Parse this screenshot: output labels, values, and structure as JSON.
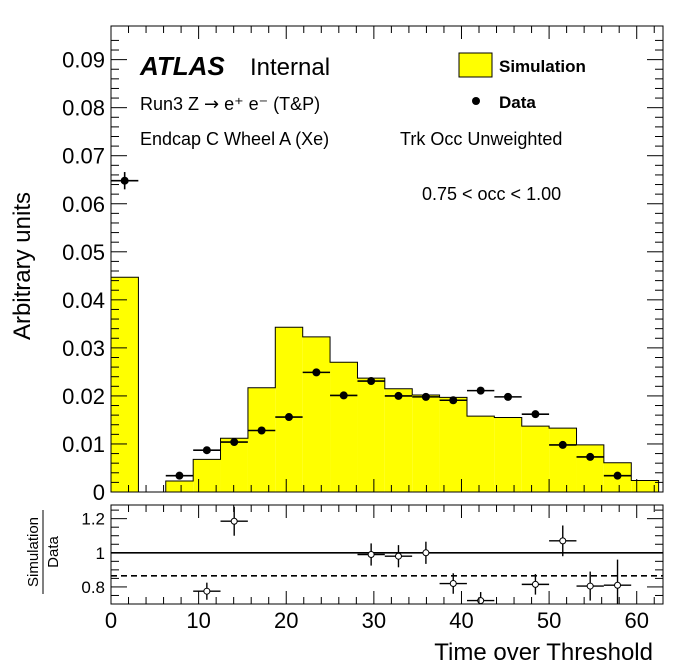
{
  "chart_data": [
    {
      "type": "histogram",
      "panel": "main",
      "ylabel": "Arbitrary units",
      "xlim": [
        0,
        63
      ],
      "ylim": [
        0,
        0.097
      ],
      "y_ticks": [
        "0",
        "0.01",
        "0.02",
        "0.03",
        "0.04",
        "0.05",
        "0.06",
        "0.07",
        "0.08",
        "0.09"
      ],
      "annotations": {
        "atlas": "ATLAS",
        "internal": "Internal",
        "process_prefix": "Run3 Z ",
        "process_arrow": "→",
        "process_suffix": " e⁺ e⁻ (T&P)",
        "region": "Endcap C Wheel A (Xe)",
        "weighting": "Trk Occ Unweighted",
        "occ_range": "0.75 < occ < 1.00"
      },
      "legend": [
        {
          "label": "Simulation",
          "style": "filled box",
          "color": "#ffff00"
        },
        {
          "label": "Data",
          "style": "marker",
          "color": "#000000"
        }
      ],
      "series": [
        {
          "name": "Simulation",
          "kind": "step-filled",
          "color": "#ffff00",
          "bin_edges": [
            0,
            3.13,
            6.25,
            9.38,
            12.5,
            15.63,
            18.75,
            21.88,
            25.0,
            28.13,
            31.25,
            34.38,
            37.5,
            40.63,
            43.75,
            46.88,
            50.0,
            53.13,
            56.25,
            59.38,
            62.5
          ],
          "values": [
            0.0447,
            0,
            0.0023,
            0.0068,
            0.0112,
            0.0217,
            0.0343,
            0.0323,
            0.027,
            0.0237,
            0.0215,
            0.0202,
            0.0197,
            0.0158,
            0.0155,
            0.0137,
            0.0133,
            0.0098,
            0.0061,
            0.0024
          ]
        },
        {
          "name": "Data",
          "kind": "points",
          "color": "#000000",
          "x": [
            1.56,
            7.81,
            10.94,
            14.06,
            17.19,
            20.31,
            23.44,
            26.56,
            29.69,
            32.81,
            35.94,
            39.06,
            42.19,
            45.31,
            48.44,
            51.56,
            54.69,
            57.81
          ],
          "y": [
            0.0648,
            0.0034,
            0.0087,
            0.0104,
            0.0128,
            0.0156,
            0.0249,
            0.0201,
            0.0231,
            0.02,
            0.0198,
            0.0191,
            0.0211,
            0.0198,
            0.0162,
            0.0098,
            0.0073,
            0.0034
          ],
          "xerr": 1.56,
          "yerr": [
            0.0018,
            0.0004,
            0.0005,
            0.0005,
            0.0005,
            0.0005,
            0.0007,
            0.0006,
            0.0007,
            0.0006,
            0.0006,
            0.0006,
            0.0006,
            0.0006,
            0.0006,
            0.0005,
            0.0005,
            0.0004
          ]
        }
      ]
    },
    {
      "type": "ratio",
      "panel": "ratio",
      "ylabel_num": "Simulation",
      "ylabel_den": "Data",
      "xlabel": "Time over Threshold",
      "xlim": [
        0,
        63
      ],
      "ylim": [
        0.7,
        1.28
      ],
      "x_ticks": [
        "0",
        "10",
        "20",
        "30",
        "40",
        "50",
        "60"
      ],
      "y_ticks": [
        "0.8",
        "1",
        "1.2"
      ],
      "reference_lines": [
        {
          "y": 1.0,
          "style": "solid"
        },
        {
          "y": 0.865,
          "style": "dashed"
        }
      ],
      "series": [
        {
          "name": "Simulation / Data",
          "kind": "points",
          "marker": "open",
          "x": [
            10.94,
            14.06,
            29.69,
            32.81,
            35.94,
            39.06,
            42.19,
            48.44,
            51.56,
            54.69,
            57.81
          ],
          "y": [
            0.775,
            1.185,
            0.99,
            0.98,
            1.0,
            0.82,
            0.72,
            0.815,
            1.07,
            0.805,
            0.81
          ],
          "xerr": 1.56,
          "yerr": [
            0.05,
            0.085,
            0.065,
            0.065,
            0.065,
            0.06,
            0.05,
            0.06,
            0.09,
            0.085,
            0.15
          ]
        }
      ]
    }
  ]
}
